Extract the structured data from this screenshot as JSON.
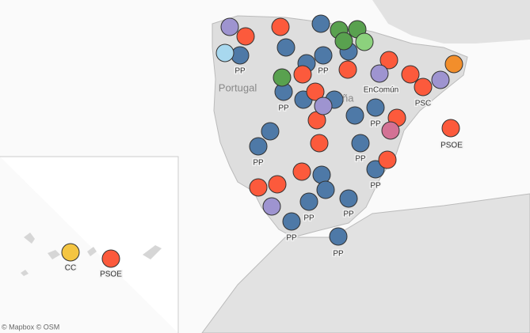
{
  "map": {
    "place_labels": [
      "Portugal",
      "ña"
    ],
    "marker_labels": [
      "PP",
      "PP",
      "PP",
      "EnComún",
      "PSC",
      "PP",
      "PSOE",
      "PP",
      "PP",
      "PP",
      "PP",
      "PP",
      "PP",
      "PP",
      "CC",
      "PSOE"
    ],
    "attribution": "© Mapbox © OSM"
  }
}
